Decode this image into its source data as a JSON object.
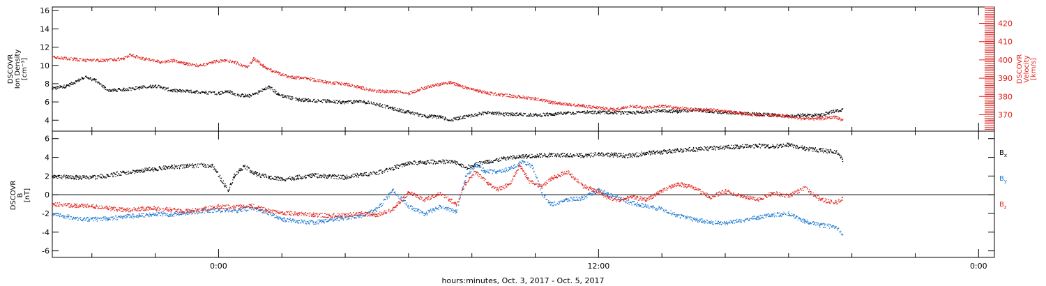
{
  "colors": {
    "black": "#000000",
    "red": "#e0201b",
    "blue": "#1a78d0"
  },
  "xaxis": {
    "label": "hours:minutes, Oct.  3, 2017 - Oct.  5, 2017",
    "range_hours": [
      -5.25,
      24.5
    ],
    "major_ticks": [
      {
        "t": 0,
        "label": "0:00"
      },
      {
        "t": 12,
        "label": "12:00"
      },
      {
        "t": 24,
        "label": "0:00"
      }
    ],
    "minor_ticks": [
      -4,
      -2,
      2,
      4,
      6,
      8,
      10,
      14,
      16,
      18,
      20,
      22
    ]
  },
  "panel_top": {
    "left_label_lines": [
      "DSCOVR",
      "Ion Density",
      "[cm⁻³]"
    ],
    "right_label_lines": [
      "DSCOVR",
      "Velocity",
      "[km/s]"
    ],
    "left_ylim": [
      2.8,
      16.4
    ],
    "left_ticks": [
      4,
      6,
      8,
      10,
      12,
      14,
      16
    ],
    "right_ylim": [
      361,
      429
    ],
    "right_ticks": [
      370,
      380,
      390,
      400,
      410,
      420
    ],
    "series": [
      {
        "key": "density",
        "color": "black",
        "axis": "left",
        "points": [
          [
            -5.25,
            7.5
          ],
          [
            -4.8,
            7.8
          ],
          [
            -4.5,
            8.3
          ],
          [
            -4.2,
            8.8
          ],
          [
            -3.9,
            8.4
          ],
          [
            -3.5,
            7.3
          ],
          [
            -3.0,
            7.4
          ],
          [
            -2.5,
            7.6
          ],
          [
            -2.0,
            7.8
          ],
          [
            -1.5,
            7.3
          ],
          [
            -1.0,
            7.2
          ],
          [
            -0.5,
            7.1
          ],
          [
            0.0,
            7.0
          ],
          [
            0.3,
            7.2
          ],
          [
            0.6,
            6.8
          ],
          [
            1.0,
            6.7
          ],
          [
            1.3,
            7.2
          ],
          [
            1.6,
            7.7
          ],
          [
            1.9,
            6.8
          ],
          [
            2.5,
            6.3
          ],
          [
            3.0,
            6.2
          ],
          [
            3.5,
            6.1
          ],
          [
            4.0,
            6.0
          ],
          [
            4.5,
            6.1
          ],
          [
            5.0,
            5.8
          ],
          [
            5.5,
            5.3
          ],
          [
            6.0,
            4.9
          ],
          [
            6.5,
            4.5
          ],
          [
            7.0,
            4.4
          ],
          [
            7.3,
            4.0
          ],
          [
            7.6,
            4.3
          ],
          [
            8.0,
            4.6
          ],
          [
            8.5,
            4.9
          ],
          [
            9.0,
            4.7
          ],
          [
            9.5,
            4.7
          ],
          [
            10.0,
            4.6
          ],
          [
            10.5,
            4.7
          ],
          [
            11.0,
            4.8
          ],
          [
            11.5,
            4.9
          ],
          [
            12.0,
            4.9
          ],
          [
            12.5,
            4.9
          ],
          [
            13.0,
            4.8
          ],
          [
            13.5,
            5.0
          ],
          [
            14.0,
            5.1
          ],
          [
            14.5,
            5.0
          ],
          [
            15.0,
            5.2
          ],
          [
            15.5,
            5.0
          ],
          [
            16.0,
            4.9
          ],
          [
            16.5,
            4.8
          ],
          [
            17.0,
            4.7
          ],
          [
            17.5,
            4.6
          ],
          [
            18.0,
            4.5
          ],
          [
            18.5,
            4.6
          ],
          [
            19.0,
            4.6
          ],
          [
            19.5,
            5.1
          ],
          [
            19.7,
            5.2
          ]
        ]
      },
      {
        "key": "velocity",
        "color": "red",
        "axis": "right",
        "points": [
          [
            -5.25,
            402
          ],
          [
            -4.8,
            401
          ],
          [
            -4.2,
            400
          ],
          [
            -3.6,
            400
          ],
          [
            -3.0,
            401
          ],
          [
            -2.8,
            403
          ],
          [
            -2.4,
            401
          ],
          [
            -1.8,
            399
          ],
          [
            -1.4,
            400
          ],
          [
            -1.0,
            398
          ],
          [
            -0.6,
            397
          ],
          [
            -0.2,
            399
          ],
          [
            0.2,
            400
          ],
          [
            0.5,
            399
          ],
          [
            0.9,
            396
          ],
          [
            1.1,
            401
          ],
          [
            1.4,
            397
          ],
          [
            1.7,
            394
          ],
          [
            2.2,
            391
          ],
          [
            2.8,
            390
          ],
          [
            3.4,
            388
          ],
          [
            4.0,
            387
          ],
          [
            4.5,
            385
          ],
          [
            5.0,
            383
          ],
          [
            5.5,
            383
          ],
          [
            6.0,
            382
          ],
          [
            6.5,
            385
          ],
          [
            7.0,
            387
          ],
          [
            7.3,
            388
          ],
          [
            7.6,
            386
          ],
          [
            8.0,
            384
          ],
          [
            8.5,
            382
          ],
          [
            9.0,
            381
          ],
          [
            9.5,
            380
          ],
          [
            10.0,
            379
          ],
          [
            10.5,
            377
          ],
          [
            11.0,
            376
          ],
          [
            11.5,
            375
          ],
          [
            12.0,
            374
          ],
          [
            12.5,
            373
          ],
          [
            13.0,
            375
          ],
          [
            13.5,
            374
          ],
          [
            14.0,
            375
          ],
          [
            14.5,
            374
          ],
          [
            15.0,
            373
          ],
          [
            15.5,
            373
          ],
          [
            16.0,
            372
          ],
          [
            16.5,
            371
          ],
          [
            17.0,
            370
          ],
          [
            17.5,
            370
          ],
          [
            18.0,
            369
          ],
          [
            18.5,
            368
          ],
          [
            19.0,
            368
          ],
          [
            19.5,
            369
          ],
          [
            19.7,
            367
          ]
        ]
      }
    ]
  },
  "panel_bottom": {
    "left_label_lines": [
      "DSCOVR",
      "B",
      "[nT]"
    ],
    "ylim": [
      -6.7,
      6.8
    ],
    "ticks": [
      -6,
      -4,
      -2,
      0,
      2,
      4,
      6
    ],
    "zero_line": 0,
    "legend": [
      {
        "base": "B",
        "sub": "x",
        "color": "black"
      },
      {
        "base": "B",
        "sub": "y",
        "color": "blue"
      },
      {
        "base": "B",
        "sub": "z",
        "color": "red"
      }
    ],
    "series": [
      {
        "key": "Bx",
        "color": "black",
        "points": [
          [
            -5.25,
            2.0
          ],
          [
            -4.5,
            1.9
          ],
          [
            -4.0,
            1.9
          ],
          [
            -3.5,
            2.1
          ],
          [
            -3.0,
            2.4
          ],
          [
            -2.5,
            2.6
          ],
          [
            -2.0,
            2.8
          ],
          [
            -1.5,
            3.0
          ],
          [
            -1.0,
            3.1
          ],
          [
            -0.5,
            3.2
          ],
          [
            -0.2,
            3.1
          ],
          [
            0.3,
            0.5
          ],
          [
            0.5,
            2.2
          ],
          [
            0.8,
            3.1
          ],
          [
            1.2,
            2.2
          ],
          [
            1.6,
            1.9
          ],
          [
            2.0,
            1.7
          ],
          [
            2.5,
            1.9
          ],
          [
            3.0,
            2.1
          ],
          [
            3.5,
            2.0
          ],
          [
            4.0,
            1.9
          ],
          [
            4.5,
            2.2
          ],
          [
            5.0,
            2.4
          ],
          [
            5.5,
            2.9
          ],
          [
            6.0,
            3.4
          ],
          [
            6.5,
            3.5
          ],
          [
            7.0,
            3.6
          ],
          [
            7.5,
            3.5
          ],
          [
            7.8,
            2.9
          ],
          [
            8.1,
            3.3
          ],
          [
            8.5,
            3.6
          ],
          [
            9.0,
            3.9
          ],
          [
            9.5,
            4.1
          ],
          [
            10.0,
            4.2
          ],
          [
            10.5,
            4.3
          ],
          [
            11.0,
            4.3
          ],
          [
            11.5,
            4.2
          ],
          [
            12.0,
            4.4
          ],
          [
            12.5,
            4.3
          ],
          [
            13.0,
            4.2
          ],
          [
            13.5,
            4.5
          ],
          [
            14.0,
            4.6
          ],
          [
            14.5,
            4.8
          ],
          [
            15.0,
            4.9
          ],
          [
            15.5,
            5.0
          ],
          [
            16.0,
            5.1
          ],
          [
            16.5,
            5.2
          ],
          [
            17.0,
            5.3
          ],
          [
            17.5,
            5.2
          ],
          [
            18.0,
            5.4
          ],
          [
            18.5,
            5.0
          ],
          [
            19.0,
            4.8
          ],
          [
            19.5,
            4.6
          ],
          [
            19.7,
            3.8
          ]
        ]
      },
      {
        "key": "By",
        "color": "blue",
        "points": [
          [
            -5.25,
            -2.0
          ],
          [
            -4.5,
            -2.5
          ],
          [
            -4.0,
            -2.6
          ],
          [
            -3.5,
            -2.5
          ],
          [
            -3.0,
            -2.3
          ],
          [
            -2.5,
            -2.2
          ],
          [
            -2.0,
            -2.0
          ],
          [
            -1.5,
            -2.1
          ],
          [
            -1.0,
            -1.9
          ],
          [
            -0.5,
            -1.7
          ],
          [
            0.0,
            -1.6
          ],
          [
            0.5,
            -1.7
          ],
          [
            1.0,
            -1.4
          ],
          [
            1.5,
            -1.8
          ],
          [
            2.0,
            -2.6
          ],
          [
            2.5,
            -2.8
          ],
          [
            3.0,
            -2.9
          ],
          [
            3.5,
            -2.7
          ],
          [
            4.0,
            -2.4
          ],
          [
            4.5,
            -2.2
          ],
          [
            5.0,
            -1.5
          ],
          [
            5.5,
            0.5
          ],
          [
            6.0,
            -1.2
          ],
          [
            6.5,
            -2.0
          ],
          [
            7.0,
            -1.2
          ],
          [
            7.5,
            -1.8
          ],
          [
            7.8,
            2.0
          ],
          [
            8.1,
            3.2
          ],
          [
            8.4,
            2.6
          ],
          [
            8.8,
            2.5
          ],
          [
            9.2,
            2.8
          ],
          [
            9.6,
            3.6
          ],
          [
            9.9,
            3.1
          ],
          [
            10.2,
            0.2
          ],
          [
            10.5,
            -1.0
          ],
          [
            11.0,
            -0.5
          ],
          [
            11.5,
            -0.3
          ],
          [
            12.0,
            0.5
          ],
          [
            12.3,
            0.1
          ],
          [
            12.7,
            -0.4
          ],
          [
            13.0,
            -0.8
          ],
          [
            13.5,
            -1.2
          ],
          [
            14.0,
            -1.5
          ],
          [
            14.5,
            -2.2
          ],
          [
            15.0,
            -2.6
          ],
          [
            15.5,
            -2.9
          ],
          [
            16.0,
            -3.0
          ],
          [
            16.5,
            -2.7
          ],
          [
            17.0,
            -2.4
          ],
          [
            17.5,
            -2.1
          ],
          [
            18.0,
            -2.0
          ],
          [
            18.5,
            -2.8
          ],
          [
            19.0,
            -3.2
          ],
          [
            19.5,
            -3.4
          ],
          [
            19.7,
            -4.3
          ]
        ]
      },
      {
        "key": "Bz",
        "color": "red",
        "points": [
          [
            -5.25,
            -1.0
          ],
          [
            -4.5,
            -1.1
          ],
          [
            -4.0,
            -1.2
          ],
          [
            -3.5,
            -1.4
          ],
          [
            -3.0,
            -1.6
          ],
          [
            -2.5,
            -1.5
          ],
          [
            -2.0,
            -1.4
          ],
          [
            -1.5,
            -1.6
          ],
          [
            -1.0,
            -1.7
          ],
          [
            -0.5,
            -1.5
          ],
          [
            0.0,
            -1.2
          ],
          [
            0.5,
            -1.3
          ],
          [
            1.0,
            -1.1
          ],
          [
            1.5,
            -1.6
          ],
          [
            2.0,
            -1.9
          ],
          [
            2.5,
            -2.0
          ],
          [
            3.0,
            -2.1
          ],
          [
            3.5,
            -2.2
          ],
          [
            4.0,
            -2.1
          ],
          [
            4.5,
            -2.0
          ],
          [
            5.0,
            -2.1
          ],
          [
            5.5,
            -1.5
          ],
          [
            6.0,
            0.3
          ],
          [
            6.5,
            -0.5
          ],
          [
            7.0,
            0.2
          ],
          [
            7.5,
            -1.0
          ],
          [
            7.8,
            1.3
          ],
          [
            8.1,
            2.5
          ],
          [
            8.5,
            1.3
          ],
          [
            8.8,
            0.6
          ],
          [
            9.2,
            1.2
          ],
          [
            9.5,
            3.2
          ],
          [
            9.8,
            1.5
          ],
          [
            10.2,
            0.9
          ],
          [
            10.5,
            1.8
          ],
          [
            11.0,
            2.5
          ],
          [
            11.5,
            1.0
          ],
          [
            12.0,
            0.3
          ],
          [
            12.3,
            -0.3
          ],
          [
            12.7,
            -0.6
          ],
          [
            13.0,
            -0.2
          ],
          [
            13.5,
            -0.5
          ],
          [
            14.0,
            0.5
          ],
          [
            14.5,
            1.2
          ],
          [
            15.0,
            0.8
          ],
          [
            15.5,
            -0.2
          ],
          [
            16.0,
            0.4
          ],
          [
            16.5,
            -0.1
          ],
          [
            17.0,
            -0.5
          ],
          [
            17.5,
            0.2
          ],
          [
            18.0,
            -0.1
          ],
          [
            18.5,
            0.8
          ],
          [
            19.0,
            -0.5
          ],
          [
            19.5,
            -0.8
          ],
          [
            19.7,
            -0.3
          ]
        ]
      }
    ]
  },
  "chart_data": [
    {
      "type": "scatter",
      "title": "",
      "xlabel": "hours:minutes, Oct.  3, 2017 - Oct.  5, 2017",
      "ylabel": "DSCOVR Ion Density [cm⁻³]",
      "y2label": "DSCOVR Velocity [km/s]",
      "xlim_hours": [
        -5.25,
        24.5
      ],
      "ylim": [
        2.8,
        16.4
      ],
      "y2lim": [
        361,
        429
      ],
      "grid": false,
      "series": [
        {
          "values_ref": "panel_top.series.density",
          "axis": "left"
        },
        {
          "values_ref": "panel_top.series.velocity",
          "axis": "right"
        }
      ]
    },
    {
      "type": "scatter",
      "title": "",
      "xlabel": "hours:minutes, Oct.  3, 2017 - Oct.  5, 2017",
      "ylabel": "DSCOVR B [nT]",
      "xlim_hours": [
        -5.25,
        24.5
      ],
      "ylim": [
        -6.7,
        6.8
      ],
      "grid": false,
      "legend": "right",
      "series": [
        {
          "name": "Bx",
          "values_ref": "panel_bottom.series.Bx"
        },
        {
          "name": "By",
          "values_ref": "panel_bottom.series.By"
        },
        {
          "name": "Bz",
          "values_ref": "panel_bottom.series.Bz"
        }
      ]
    }
  ]
}
